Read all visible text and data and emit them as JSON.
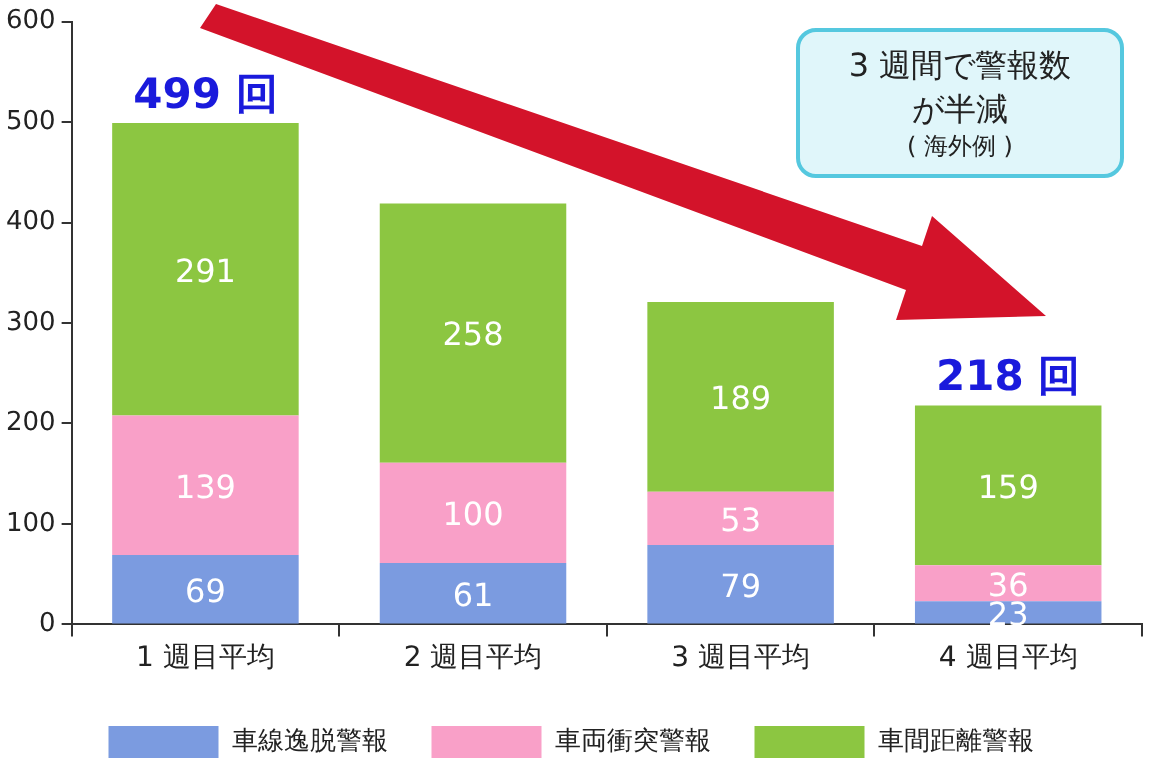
{
  "chart_data": {
    "type": "bar",
    "stacked": true,
    "categories": [
      "1 週目平均",
      "2 週目平均",
      "3 週目平均",
      "4 週目平均"
    ],
    "series": [
      {
        "name": "車線逸脱警報",
        "color": "#7b9be0",
        "values": [
          69,
          61,
          79,
          23
        ]
      },
      {
        "name": "車両衝突警報",
        "color": "#f9a0c8",
        "values": [
          139,
          100,
          53,
          36
        ]
      },
      {
        "name": "車間距離警報",
        "color": "#8cc641",
        "values": [
          291,
          258,
          189,
          159
        ]
      }
    ],
    "ylim": [
      0,
      600
    ],
    "yticks": [
      0,
      100,
      200,
      300,
      400,
      500,
      600
    ],
    "grid": false,
    "legend": "bottom",
    "data_labels": true,
    "annotations": [
      {
        "text": "499 回",
        "x": "1 週目平均",
        "y": 499
      },
      {
        "text": "218 回",
        "x": "4 週目平均",
        "y": 218
      },
      "3 週間で警報数が半減",
      "( 海外例 )"
    ]
  }
}
